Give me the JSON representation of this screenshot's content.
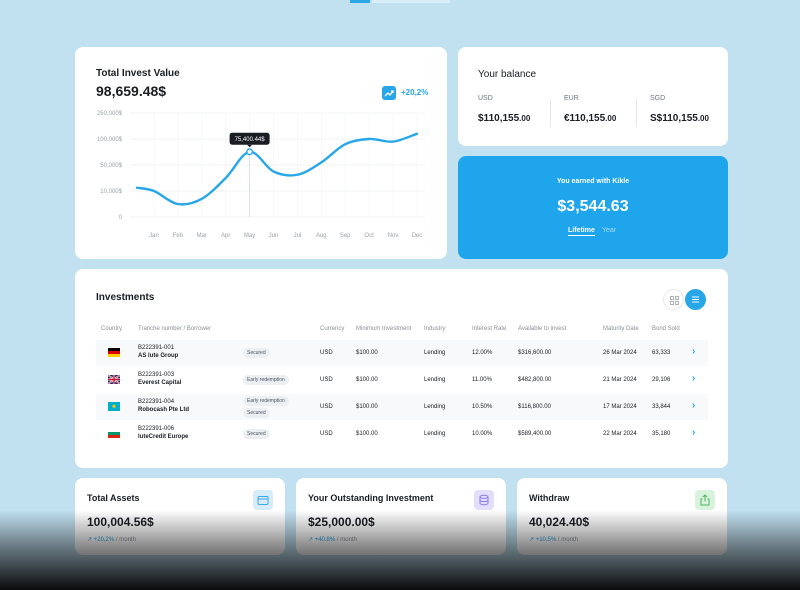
{
  "invest": {
    "title": "Total Invest Value",
    "value": "98,659.48$",
    "trend": "+20,2%",
    "tooltip": "75,400.44$"
  },
  "chart_data": {
    "type": "line",
    "title": "Total Invest Value",
    "x": [
      "Jan",
      "Feb",
      "Mar",
      "Apr",
      "May",
      "Jun",
      "Jul",
      "Aug",
      "Sep",
      "Oct",
      "Nov",
      "Dec"
    ],
    "y_tick_labels": [
      "250,000$",
      "100,000$",
      "50,000$",
      "10,000$",
      "0"
    ],
    "series": [
      {
        "values": [
          10000,
          5000,
          7000,
          30000,
          75400,
          40000,
          35000,
          55000,
          90000,
          100000,
          95000,
          130000
        ]
      }
    ],
    "highlight": {
      "x": "May",
      "label": "75,400.44$"
    },
    "grid": true,
    "color": "#27a6e8"
  },
  "balance": {
    "title": "Your balance",
    "currencies": [
      {
        "label": "USD",
        "amount": "$110,155",
        "cents": ".00"
      },
      {
        "label": "EUR",
        "amount": "€110,155",
        "cents": ".00"
      },
      {
        "label": "SGD",
        "amount": "S$110,155",
        "cents": ".00"
      }
    ]
  },
  "earned": {
    "title": "You earned with Kikle",
    "value": "$3,544.63",
    "tab_lifetime": "Lifetime",
    "tab_year": "Year"
  },
  "investments": {
    "title": "Investments",
    "headers": [
      "Country",
      "Tranche number / Borrower",
      "Currency",
      "Minimum Investment",
      "Industry",
      "Interest Rate",
      "Available to invest",
      "Maturity Date",
      "Bond Sold"
    ],
    "rows": [
      {
        "flag": "de",
        "id": "B222391-001",
        "borrower": "AS lute Group",
        "tags": [
          "Secured"
        ],
        "currency": "USD",
        "min": "$100.00",
        "industry": "Lending",
        "rate": "12.00%",
        "available": "$316,600.00",
        "maturity": "26 Mar 2024",
        "sold": "63,333"
      },
      {
        "flag": "uk",
        "id": "B222391-003",
        "borrower": "Everest Capital",
        "tags": [
          "Early redemption"
        ],
        "currency": "USD",
        "min": "$100.00",
        "industry": "Lending",
        "rate": "11.00%",
        "available": "$482,800.00",
        "maturity": "21 Mar 2024",
        "sold": "29,106"
      },
      {
        "flag": "kz",
        "id": "B222391-004",
        "borrower": "Robocash Pte Ltd",
        "tags": [
          "Early redemption",
          "Secured"
        ],
        "currency": "USD",
        "min": "$100.00",
        "industry": "Lending",
        "rate": "10.50%",
        "available": "$116,800.00",
        "maturity": "17 Mar 2024",
        "sold": "33,844"
      },
      {
        "flag": "bg",
        "id": "B222391-006",
        "borrower": "luteCredit Europe",
        "tags": [
          "Secured"
        ],
        "currency": "USD",
        "min": "$100.00",
        "industry": "Lending",
        "rate": "10.00%",
        "available": "$589,400.00",
        "maturity": "22 Mar 2024",
        "sold": "35,180"
      }
    ]
  },
  "stats": [
    {
      "title": "Total Assets",
      "value": "100,004.56$",
      "pct": "+20,2%",
      "period": " / month",
      "icon": "wallet-icon",
      "icon_bg": "#d6ecfb",
      "icon_color": "#3aa7e6"
    },
    {
      "title": "Your Outstanding Investment",
      "value": "$25,000.00$",
      "pct": "+40.8%",
      "period": " / month",
      "icon": "database-icon",
      "icon_bg": "#e3defb",
      "icon_color": "#8b7be8"
    },
    {
      "title": "Withdraw",
      "value": "40,024.40$",
      "pct": "+10,5%",
      "period": " / month",
      "icon": "share-icon",
      "icon_bg": "#d9f2dc",
      "icon_color": "#4cb86a"
    }
  ]
}
